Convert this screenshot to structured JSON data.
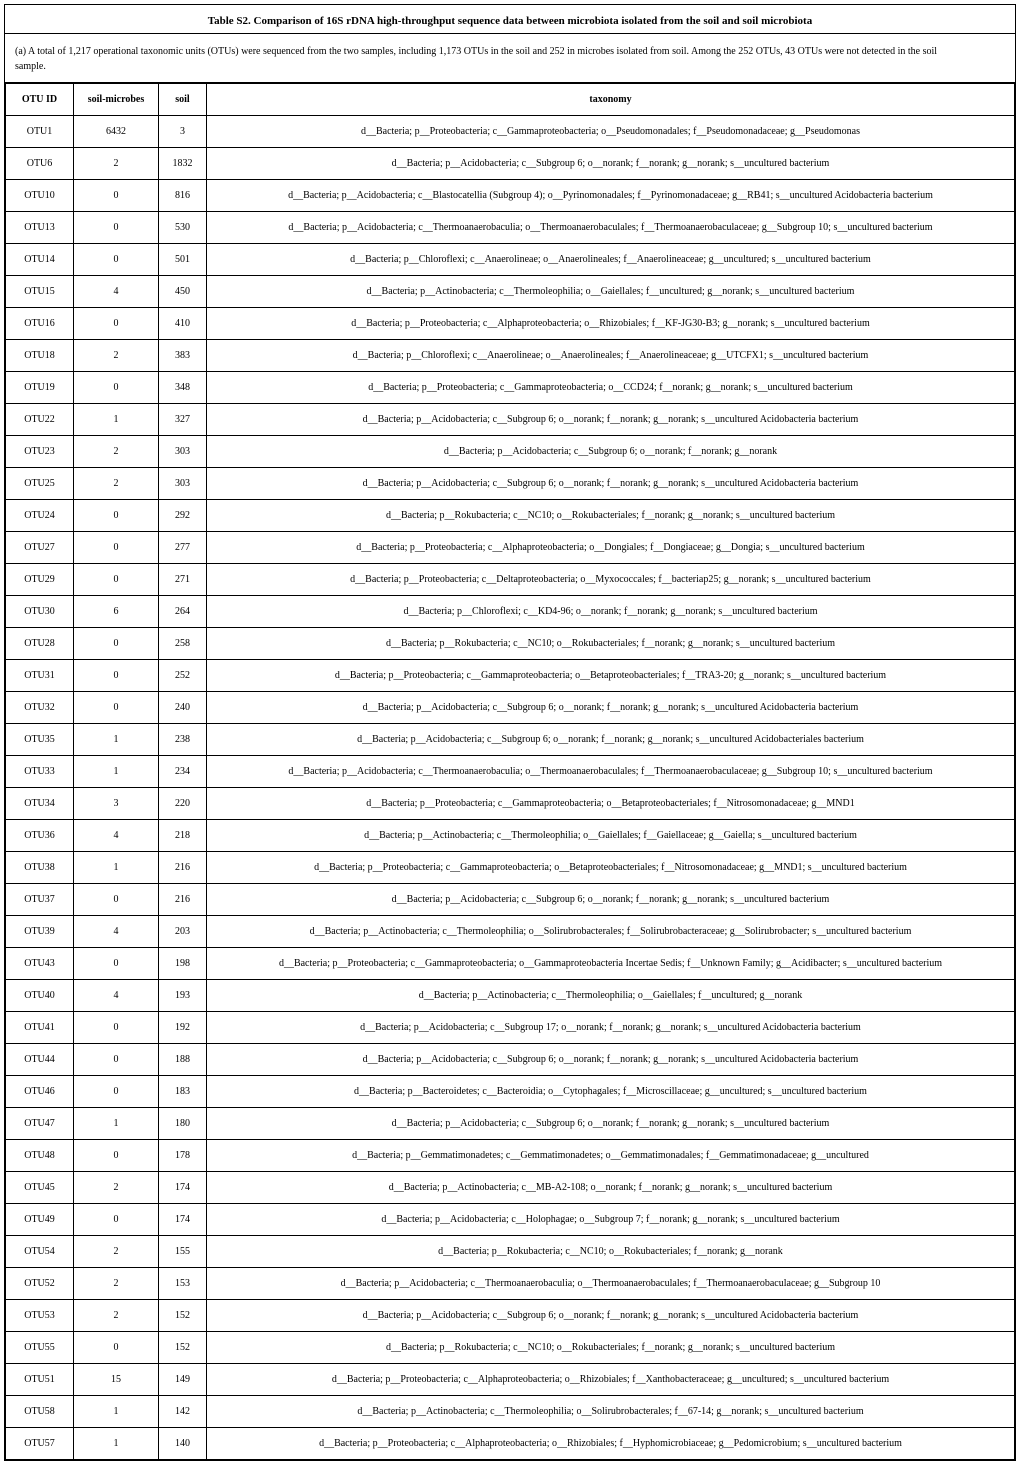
{
  "title": "Table S2. Comparison of 16S rDNA high-throughput sequence data between microbiota isolated from the soil and soil microbiota",
  "caption_line1": "(a) A total of 1,217 operational taxonomic units (OTUs) were sequenced from the two samples, including 1,173 OTUs in the soil and 252 in microbes isolated from soil. Among the 252 OTUs, 43 OTUs were not detected in the soil",
  "caption_line2": "sample.",
  "headers": {
    "otu": "OTU ID",
    "sm": "soil-microbes",
    "soil": "soil",
    "tax": "taxonomy"
  },
  "rows": [
    {
      "otu": "OTU1",
      "sm": "6432",
      "soil": "3",
      "tax": "d__Bacteria; p__Proteobacteria; c__Gammaproteobacteria; o__Pseudomonadales; f__Pseudomonadaceae; g__Pseudomonas"
    },
    {
      "otu": "OTU6",
      "sm": "2",
      "soil": "1832",
      "tax": "d__Bacteria; p__Acidobacteria; c__Subgroup 6; o__norank; f__norank; g__norank; s__uncultured bacterium"
    },
    {
      "otu": "OTU10",
      "sm": "0",
      "soil": "816",
      "tax": "d__Bacteria; p__Acidobacteria; c__Blastocatellia (Subgroup 4); o__Pyrinomonadales; f__Pyrinomonadaceae; g__RB41; s__uncultured Acidobacteria bacterium"
    },
    {
      "otu": "OTU13",
      "sm": "0",
      "soil": "530",
      "tax": "d__Bacteria; p__Acidobacteria; c__Thermoanaerobaculia; o__Thermoanaerobaculales; f__Thermoanaerobaculaceae; g__Subgroup 10; s__uncultured bacterium"
    },
    {
      "otu": "OTU14",
      "sm": "0",
      "soil": "501",
      "tax": "d__Bacteria; p__Chloroflexi; c__Anaerolineae; o__Anaerolineales; f__Anaerolineaceae; g__uncultured; s__uncultured bacterium"
    },
    {
      "otu": "OTU15",
      "sm": "4",
      "soil": "450",
      "tax": "d__Bacteria; p__Actinobacteria; c__Thermoleophilia; o__Gaiellales; f__uncultured; g__norank; s__uncultured bacterium"
    },
    {
      "otu": "OTU16",
      "sm": "0",
      "soil": "410",
      "tax": "d__Bacteria; p__Proteobacteria; c__Alphaproteobacteria; o__Rhizobiales; f__KF-JG30-B3; g__norank; s__uncultured bacterium"
    },
    {
      "otu": "OTU18",
      "sm": "2",
      "soil": "383",
      "tax": "d__Bacteria; p__Chloroflexi; c__Anaerolineae; o__Anaerolineales; f__Anaerolineaceae; g__UTCFX1; s__uncultured bacterium"
    },
    {
      "otu": "OTU19",
      "sm": "0",
      "soil": "348",
      "tax": "d__Bacteria; p__Proteobacteria; c__Gammaproteobacteria; o__CCD24; f__norank; g__norank; s__uncultured bacterium"
    },
    {
      "otu": "OTU22",
      "sm": "1",
      "soil": "327",
      "tax": "d__Bacteria; p__Acidobacteria; c__Subgroup 6; o__norank; f__norank; g__norank; s__uncultured Acidobacteria bacterium"
    },
    {
      "otu": "OTU23",
      "sm": "2",
      "soil": "303",
      "tax": "d__Bacteria; p__Acidobacteria; c__Subgroup 6; o__norank; f__norank; g__norank"
    },
    {
      "otu": "OTU25",
      "sm": "2",
      "soil": "303",
      "tax": "d__Bacteria; p__Acidobacteria; c__Subgroup 6; o__norank; f__norank; g__norank; s__uncultured Acidobacteria bacterium"
    },
    {
      "otu": "OTU24",
      "sm": "0",
      "soil": "292",
      "tax": "d__Bacteria; p__Rokubacteria; c__NC10; o__Rokubacteriales; f__norank; g__norank; s__uncultured bacterium"
    },
    {
      "otu": "OTU27",
      "sm": "0",
      "soil": "277",
      "tax": "d__Bacteria; p__Proteobacteria; c__Alphaproteobacteria; o__Dongiales; f__Dongiaceae; g__Dongia; s__uncultured bacterium"
    },
    {
      "otu": "OTU29",
      "sm": "0",
      "soil": "271",
      "tax": "d__Bacteria; p__Proteobacteria; c__Deltaproteobacteria; o__Myxococcales; f__bacteriap25; g__norank; s__uncultured bacterium"
    },
    {
      "otu": "OTU30",
      "sm": "6",
      "soil": "264",
      "tax": "d__Bacteria; p__Chloroflexi; c__KD4-96; o__norank; f__norank; g__norank; s__uncultured bacterium"
    },
    {
      "otu": "OTU28",
      "sm": "0",
      "soil": "258",
      "tax": "d__Bacteria; p__Rokubacteria; c__NC10; o__Rokubacteriales; f__norank; g__norank; s__uncultured bacterium"
    },
    {
      "otu": "OTU31",
      "sm": "0",
      "soil": "252",
      "tax": "d__Bacteria; p__Proteobacteria; c__Gammaproteobacteria; o__Betaproteobacteriales; f__TRA3-20; g__norank; s__uncultured bacterium"
    },
    {
      "otu": "OTU32",
      "sm": "0",
      "soil": "240",
      "tax": "d__Bacteria; p__Acidobacteria; c__Subgroup 6; o__norank; f__norank; g__norank; s__uncultured Acidobacteria bacterium"
    },
    {
      "otu": "OTU35",
      "sm": "1",
      "soil": "238",
      "tax": "d__Bacteria; p__Acidobacteria; c__Subgroup 6; o__norank; f__norank; g__norank; s__uncultured Acidobacteriales bacterium"
    },
    {
      "otu": "OTU33",
      "sm": "1",
      "soil": "234",
      "tax": "d__Bacteria; p__Acidobacteria; c__Thermoanaerobaculia; o__Thermoanaerobaculales; f__Thermoanaerobaculaceae; g__Subgroup 10; s__uncultured bacterium"
    },
    {
      "otu": "OTU34",
      "sm": "3",
      "soil": "220",
      "tax": "d__Bacteria; p__Proteobacteria; c__Gammaproteobacteria; o__Betaproteobacteriales; f__Nitrosomonadaceae; g__MND1"
    },
    {
      "otu": "OTU36",
      "sm": "4",
      "soil": "218",
      "tax": "d__Bacteria; p__Actinobacteria; c__Thermoleophilia; o__Gaiellales; f__Gaiellaceae; g__Gaiella; s__uncultured bacterium"
    },
    {
      "otu": "OTU38",
      "sm": "1",
      "soil": "216",
      "tax": "d__Bacteria; p__Proteobacteria; c__Gammaproteobacteria; o__Betaproteobacteriales; f__Nitrosomonadaceae; g__MND1; s__uncultured bacterium"
    },
    {
      "otu": "OTU37",
      "sm": "0",
      "soil": "216",
      "tax": "d__Bacteria; p__Acidobacteria; c__Subgroup 6; o__norank; f__norank; g__norank; s__uncultured bacterium"
    },
    {
      "otu": "OTU39",
      "sm": "4",
      "soil": "203",
      "tax": "d__Bacteria; p__Actinobacteria; c__Thermoleophilia; o__Solirubrobacterales; f__Solirubrobacteraceae; g__Solirubrobacter; s__uncultured bacterium"
    },
    {
      "otu": "OTU43",
      "sm": "0",
      "soil": "198",
      "tax": "d__Bacteria; p__Proteobacteria; c__Gammaproteobacteria; o__Gammaproteobacteria Incertae Sedis; f__Unknown Family; g__Acidibacter; s__uncultured bacterium"
    },
    {
      "otu": "OTU40",
      "sm": "4",
      "soil": "193",
      "tax": "d__Bacteria; p__Actinobacteria; c__Thermoleophilia; o__Gaiellales; f__uncultured; g__norank"
    },
    {
      "otu": "OTU41",
      "sm": "0",
      "soil": "192",
      "tax": "d__Bacteria; p__Acidobacteria; c__Subgroup 17; o__norank; f__norank; g__norank; s__uncultured Acidobacteria bacterium"
    },
    {
      "otu": "OTU44",
      "sm": "0",
      "soil": "188",
      "tax": "d__Bacteria; p__Acidobacteria; c__Subgroup 6; o__norank; f__norank; g__norank; s__uncultured Acidobacteria bacterium"
    },
    {
      "otu": "OTU46",
      "sm": "0",
      "soil": "183",
      "tax": "d__Bacteria; p__Bacteroidetes; c__Bacteroidia; o__Cytophagales; f__Microscillaceae; g__uncultured; s__uncultured bacterium"
    },
    {
      "otu": "OTU47",
      "sm": "1",
      "soil": "180",
      "tax": "d__Bacteria; p__Acidobacteria; c__Subgroup 6; o__norank; f__norank; g__norank; s__uncultured bacterium"
    },
    {
      "otu": "OTU48",
      "sm": "0",
      "soil": "178",
      "tax": "d__Bacteria; p__Gemmatimonadetes; c__Gemmatimonadetes; o__Gemmatimonadales; f__Gemmatimonadaceae; g__uncultured"
    },
    {
      "otu": "OTU45",
      "sm": "2",
      "soil": "174",
      "tax": "d__Bacteria; p__Actinobacteria; c__MB-A2-108; o__norank; f__norank; g__norank; s__uncultured bacterium"
    },
    {
      "otu": "OTU49",
      "sm": "0",
      "soil": "174",
      "tax": "d__Bacteria; p__Acidobacteria; c__Holophagae; o__Subgroup 7; f__norank; g__norank; s__uncultured bacterium"
    },
    {
      "otu": "OTU54",
      "sm": "2",
      "soil": "155",
      "tax": "d__Bacteria; p__Rokubacteria; c__NC10; o__Rokubacteriales; f__norank; g__norank"
    },
    {
      "otu": "OTU52",
      "sm": "2",
      "soil": "153",
      "tax": "d__Bacteria; p__Acidobacteria; c__Thermoanaerobaculia; o__Thermoanaerobaculales; f__Thermoanaerobaculaceae; g__Subgroup 10"
    },
    {
      "otu": "OTU53",
      "sm": "2",
      "soil": "152",
      "tax": "d__Bacteria; p__Acidobacteria; c__Subgroup 6; o__norank; f__norank; g__norank; s__uncultured Acidobacteria bacterium"
    },
    {
      "otu": "OTU55",
      "sm": "0",
      "soil": "152",
      "tax": "d__Bacteria; p__Rokubacteria; c__NC10; o__Rokubacteriales; f__norank; g__norank; s__uncultured bacterium"
    },
    {
      "otu": "OTU51",
      "sm": "15",
      "soil": "149",
      "tax": "d__Bacteria; p__Proteobacteria; c__Alphaproteobacteria; o__Rhizobiales; f__Xanthobacteraceae; g__uncultured; s__uncultured bacterium"
    },
    {
      "otu": "OTU58",
      "sm": "1",
      "soil": "142",
      "tax": "d__Bacteria; p__Actinobacteria; c__Thermoleophilia; o__Solirubrobacterales; f__67-14; g__norank; s__uncultured bacterium"
    },
    {
      "otu": "OTU57",
      "sm": "1",
      "soil": "140",
      "tax": "d__Bacteria; p__Proteobacteria; c__Alphaproteobacteria; o__Rhizobiales; f__Hyphomicrobiaceae; g__Pedomicrobium; s__uncultured bacterium"
    }
  ]
}
